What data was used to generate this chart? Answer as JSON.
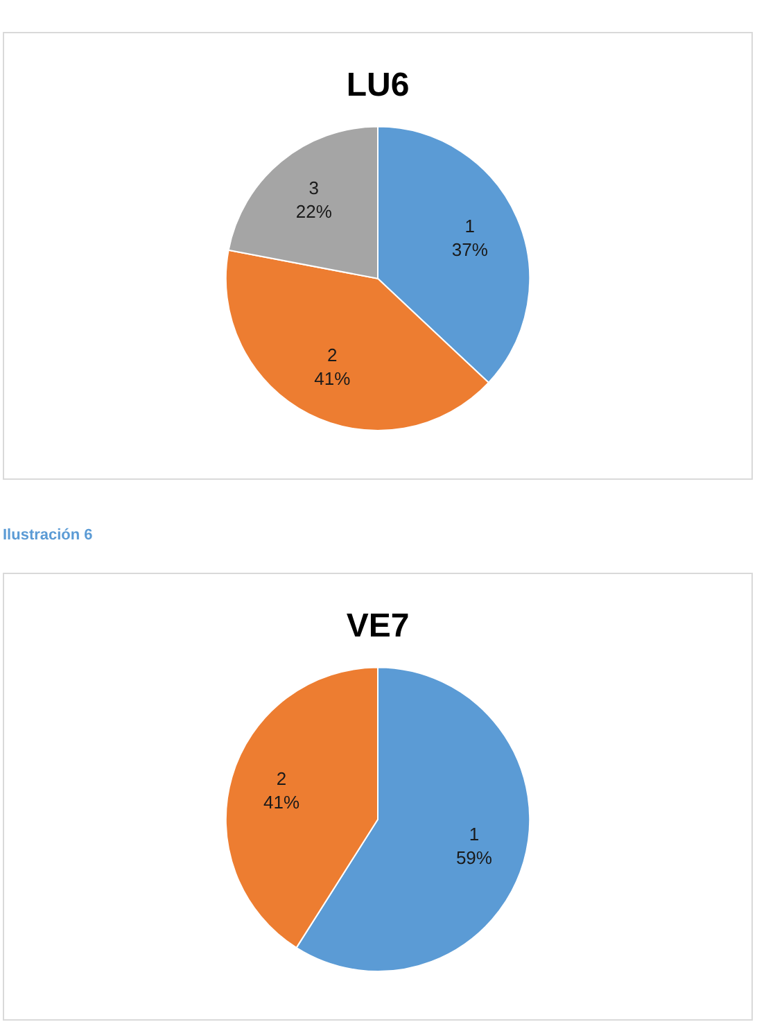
{
  "chart_data": [
    {
      "type": "pie",
      "title": "LU6",
      "categories": [
        "1",
        "2",
        "3"
      ],
      "values": [
        37,
        41,
        22
      ],
      "colors": [
        "#5b9bd5",
        "#ed7d31",
        "#a5a5a5"
      ],
      "value_labels": [
        "37%",
        "41%",
        "22%"
      ],
      "annotations": [
        "Ilustración 6"
      ]
    },
    {
      "type": "pie",
      "title": "VE7",
      "categories": [
        "1",
        "2"
      ],
      "values": [
        59,
        41
      ],
      "colors": [
        "#5b9bd5",
        "#ed7d31"
      ],
      "value_labels": [
        "59%",
        "41%"
      ]
    }
  ]
}
